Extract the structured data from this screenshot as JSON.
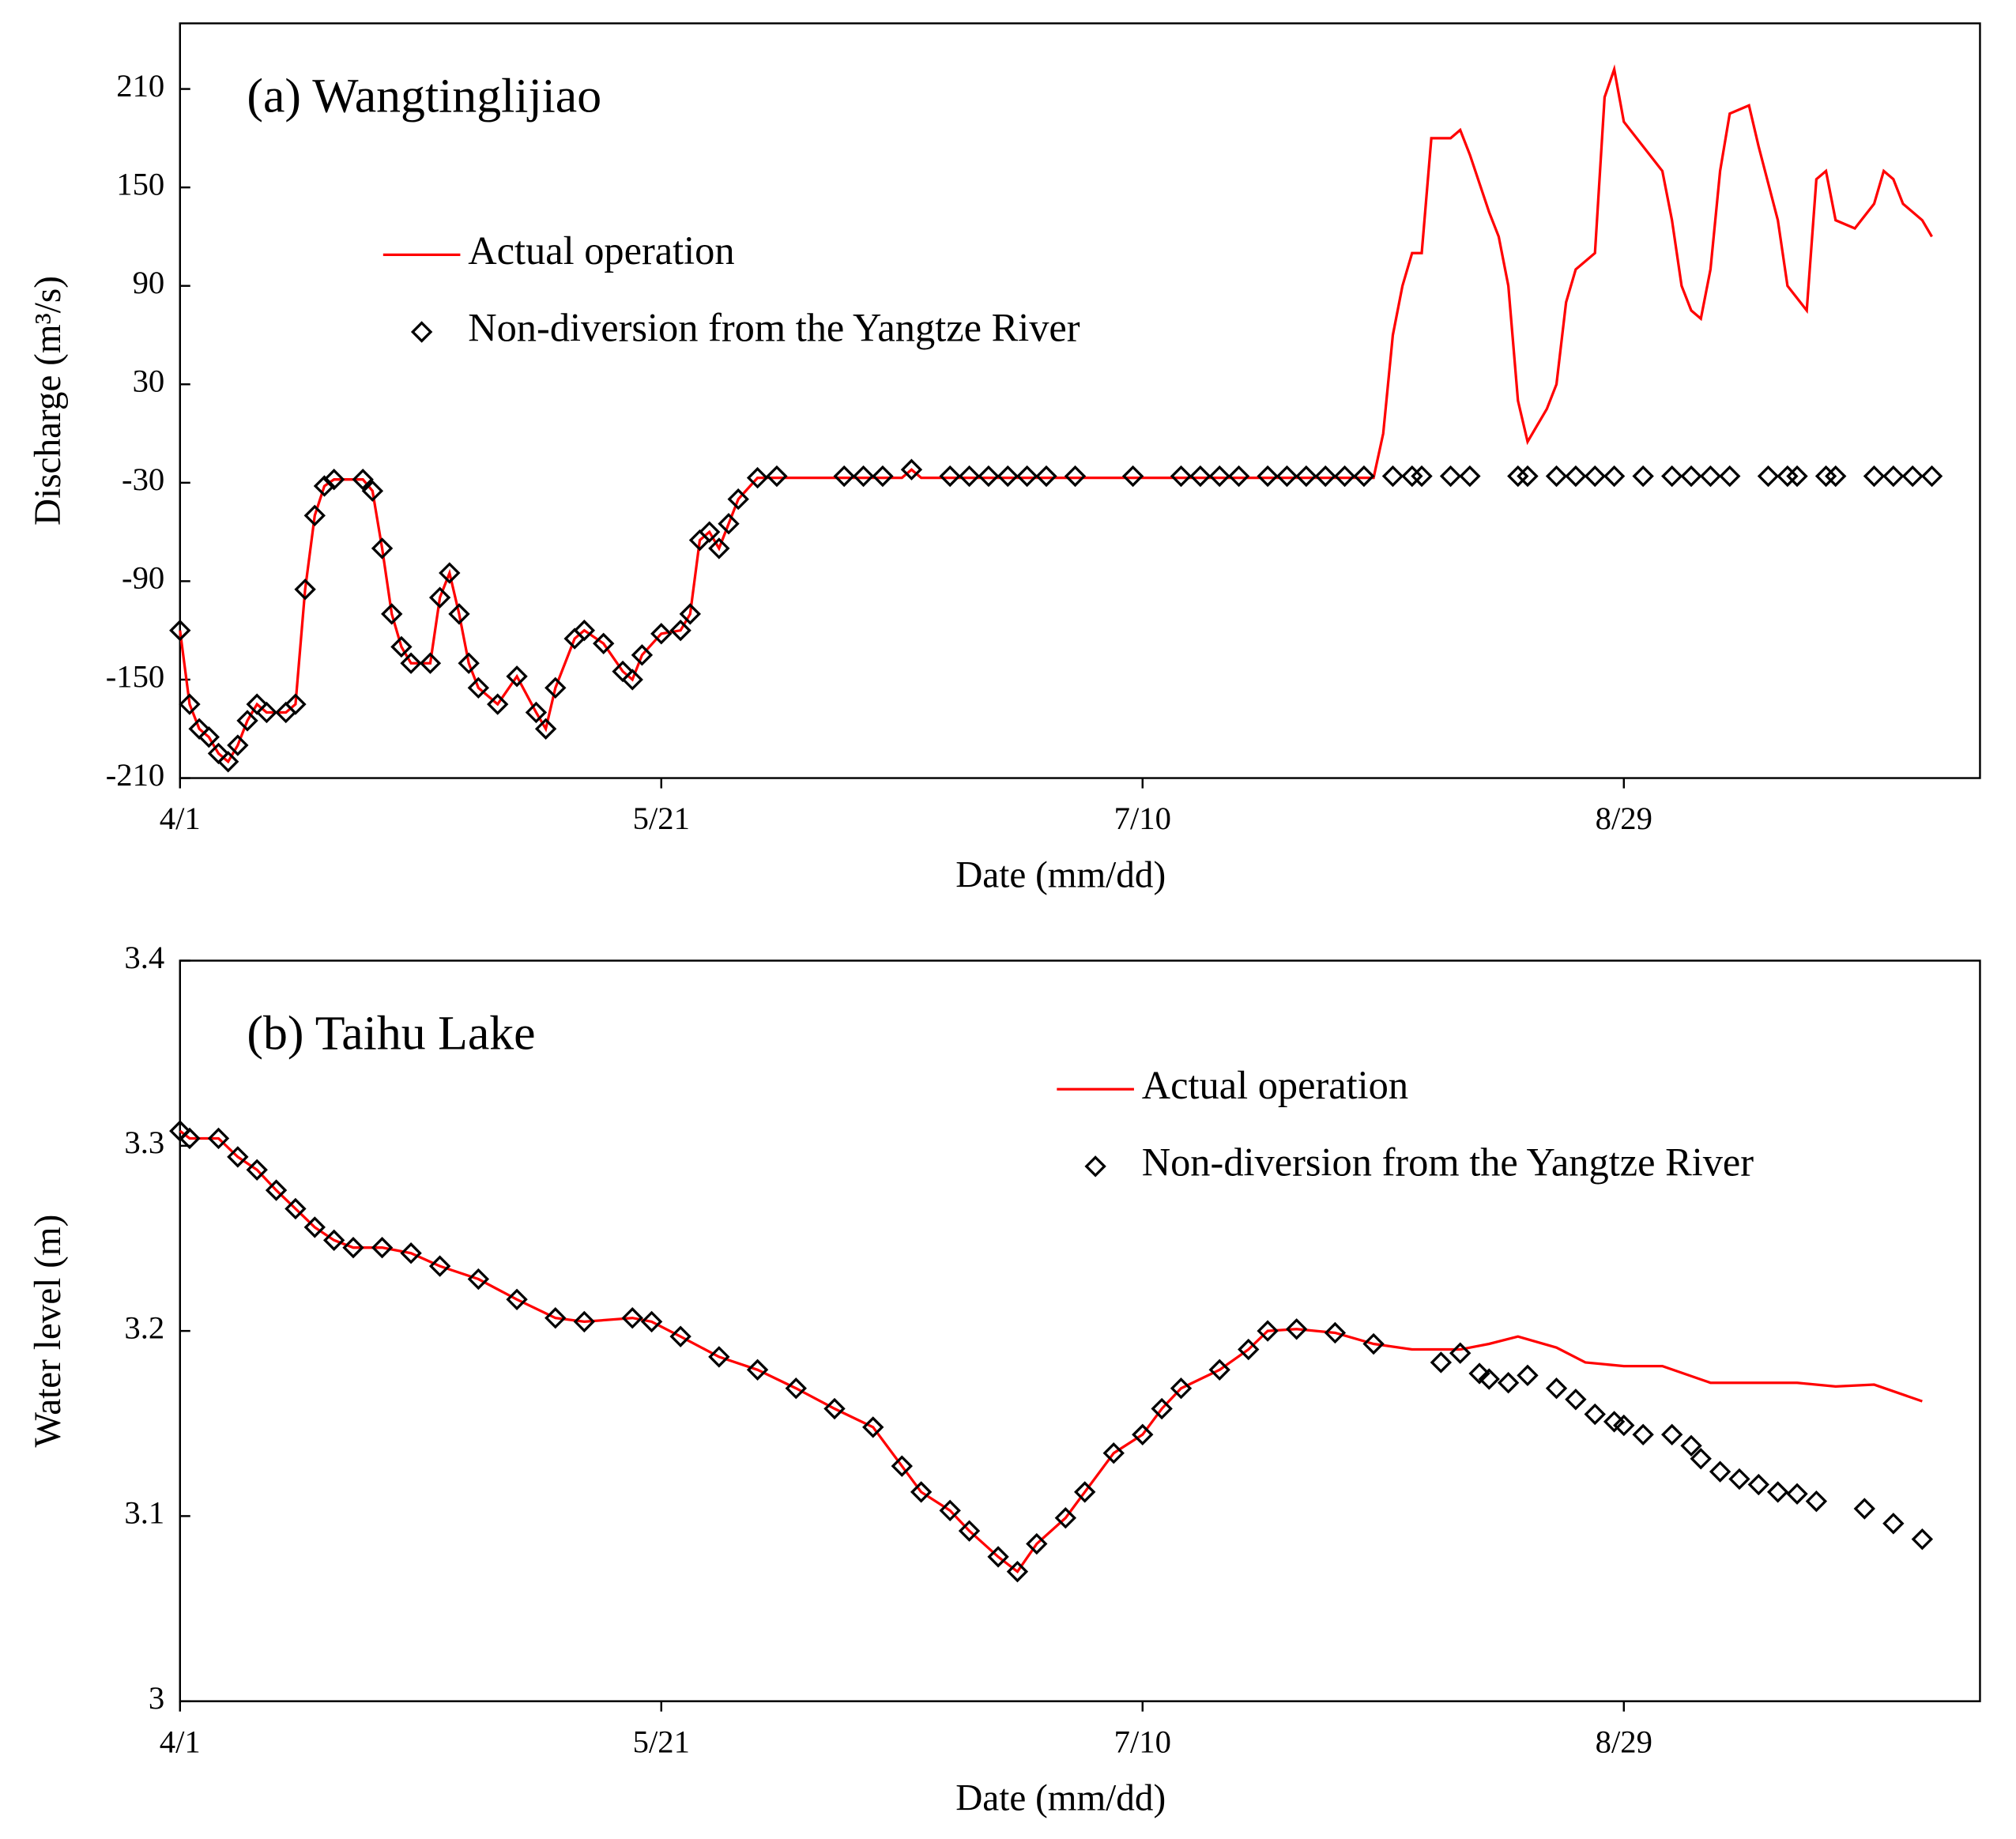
{
  "chart_data": [
    {
      "type": "line",
      "title": "(a) Wangtinglijiao",
      "xlabel": "Date (mm/dd)",
      "ylabel": "Discharge (m³/s)",
      "xlim": [
        "4/1",
        "10/5"
      ],
      "xticks": [
        "4/1",
        "5/21",
        "7/10",
        "8/29"
      ],
      "ylim": [
        -210,
        250
      ],
      "yticks": [
        -210,
        -150,
        -90,
        -30,
        30,
        90,
        150,
        210
      ],
      "legend": "upper left",
      "series": [
        {
          "name": "Actual operation",
          "color": "#ff0000",
          "style": "line",
          "x": [
            "4/1",
            "4/2",
            "4/3",
            "4/4",
            "4/5",
            "4/6",
            "4/7",
            "4/8",
            "4/9",
            "4/10",
            "4/12",
            "4/13",
            "4/14",
            "4/15",
            "4/16",
            "4/17",
            "4/20",
            "4/21",
            "4/22",
            "4/23",
            "4/24",
            "4/25",
            "4/27",
            "4/28",
            "4/29",
            "4/30",
            "5/1",
            "5/2",
            "5/4",
            "5/6",
            "5/8",
            "5/9",
            "5/10",
            "5/12",
            "5/13",
            "5/15",
            "5/17",
            "5/18",
            "5/19",
            "5/21",
            "5/23",
            "5/24",
            "5/25",
            "5/26",
            "5/27",
            "5/28",
            "5/29",
            "5/31",
            "6/15",
            "6/16",
            "6/17",
            "8/3",
            "8/4",
            "8/5",
            "8/6",
            "8/7",
            "8/8",
            "8/9",
            "8/11",
            "8/12",
            "8/13",
            "8/15",
            "8/16",
            "8/17",
            "8/18",
            "8/19",
            "8/20",
            "8/21",
            "8/22",
            "8/23",
            "8/24",
            "8/26",
            "8/27",
            "8/28",
            "8/29",
            "8/31",
            "9/2",
            "9/3",
            "9/4",
            "9/5",
            "9/6",
            "9/7",
            "9/8",
            "9/9",
            "9/11",
            "9/12",
            "9/14",
            "9/15",
            "9/17",
            "9/18",
            "9/19",
            "9/20",
            "9/22",
            "9/24",
            "9/25",
            "9/26",
            "9/27",
            "9/29",
            "9/30"
          ],
          "values": [
            -120,
            -165,
            -180,
            -185,
            -195,
            -200,
            -190,
            -175,
            -165,
            -170,
            -170,
            -165,
            -95,
            -50,
            -32,
            -28,
            -28,
            -35,
            -70,
            -110,
            -130,
            -140,
            -140,
            -100,
            -85,
            -110,
            -140,
            -155,
            -165,
            -148,
            -170,
            -180,
            -155,
            -125,
            -120,
            -128,
            -145,
            -150,
            -135,
            -122,
            -120,
            -110,
            -65,
            -60,
            -70,
            -55,
            -40,
            -27,
            -27,
            -22,
            -27,
            -27,
            0,
            60,
            90,
            110,
            110,
            180,
            180,
            185,
            170,
            135,
            120,
            90,
            20,
            -5,
            5,
            15,
            30,
            80,
            100,
            110,
            205,
            222,
            190,
            175,
            160,
            130,
            90,
            75,
            70,
            100,
            160,
            195,
            200,
            175,
            130,
            90,
            75,
            155,
            160,
            130,
            125,
            140,
            160,
            155,
            140,
            130,
            120
          ]
        },
        {
          "name": "Non-diversion from the Yangtze River",
          "color": "#000000",
          "style": "diamond",
          "x": [
            "4/1",
            "4/2",
            "4/3",
            "4/4",
            "4/5",
            "4/6",
            "4/7",
            "4/8",
            "4/9",
            "4/10",
            "4/12",
            "4/13",
            "4/14",
            "4/15",
            "4/16",
            "4/17",
            "4/20",
            "4/21",
            "4/22",
            "4/23",
            "4/24",
            "4/25",
            "4/27",
            "4/28",
            "4/29",
            "4/30",
            "5/1",
            "5/2",
            "5/4",
            "5/6",
            "5/8",
            "5/9",
            "5/10",
            "5/12",
            "5/13",
            "5/15",
            "5/17",
            "5/18",
            "5/19",
            "5/21",
            "5/23",
            "5/24",
            "5/25",
            "5/26",
            "5/27",
            "5/28",
            "5/29",
            "5/31",
            "6/2",
            "6/9",
            "6/11",
            "6/13",
            "6/16",
            "6/20",
            "6/22",
            "6/24",
            "6/26",
            "6/28",
            "6/30",
            "7/3",
            "7/9",
            "7/14",
            "7/16",
            "7/18",
            "7/20",
            "7/23",
            "7/25",
            "7/27",
            "7/29",
            "7/31",
            "8/2",
            "8/5",
            "8/7",
            "8/8",
            "8/11",
            "8/13",
            "8/18",
            "8/19",
            "8/22",
            "8/24",
            "8/26",
            "8/28",
            "8/31",
            "9/3",
            "9/5",
            "9/7",
            "9/9",
            "9/13",
            "9/15",
            "9/16",
            "9/19",
            "9/20",
            "9/24",
            "9/26",
            "9/28",
            "9/30"
          ],
          "values": [
            -120,
            -165,
            -180,
            -185,
            -195,
            -200,
            -190,
            -175,
            -165,
            -170,
            -170,
            -165,
            -95,
            -50,
            -32,
            -28,
            -28,
            -35,
            -70,
            -110,
            -130,
            -140,
            -140,
            -100,
            -85,
            -110,
            -140,
            -155,
            -165,
            -148,
            -170,
            -180,
            -155,
            -125,
            -120,
            -128,
            -145,
            -150,
            -135,
            -122,
            -120,
            -110,
            -65,
            -60,
            -70,
            -55,
            -40,
            -27,
            -26,
            -26,
            -26,
            -26,
            -22,
            -26,
            -26,
            -26,
            -26,
            -26,
            -26,
            -26,
            -26,
            -26,
            -26,
            -26,
            -26,
            -26,
            -26,
            -26,
            -26,
            -26,
            -26,
            -26,
            -26,
            -26,
            -26,
            -26,
            -26,
            -26,
            -26,
            -26,
            -26,
            -26,
            -26,
            -26,
            -26,
            -26,
            -26,
            -26,
            -26,
            -26,
            -26,
            -26,
            -26,
            -26,
            -26,
            -26
          ]
        }
      ]
    },
    {
      "type": "line",
      "title": "(b) Taihu Lake",
      "xlabel": "Date (mm/dd)",
      "ylabel": "Water level (m)",
      "xlim": [
        "4/1",
        "10/5"
      ],
      "xticks": [
        "4/1",
        "5/21",
        "7/10",
        "8/29"
      ],
      "ylim": [
        3,
        3.4
      ],
      "yticks": [
        3,
        3.1,
        3.2,
        3.3,
        3.4
      ],
      "legend": "upper right",
      "series": [
        {
          "name": "Actual operation",
          "color": "#ff0000",
          "style": "line",
          "x": [
            "4/1",
            "4/2",
            "4/5",
            "4/7",
            "4/9",
            "4/11",
            "4/13",
            "4/15",
            "4/17",
            "4/19",
            "4/22",
            "4/25",
            "4/28",
            "5/2",
            "5/6",
            "5/10",
            "5/13",
            "5/18",
            "5/20",
            "5/23",
            "5/27",
            "5/31",
            "6/4",
            "6/8",
            "6/12",
            "6/15",
            "6/17",
            "6/20",
            "6/22",
            "6/25",
            "6/27",
            "6/29",
            "7/2",
            "7/4",
            "7/7",
            "7/10",
            "7/12",
            "7/14",
            "7/18",
            "7/21",
            "7/23",
            "7/26",
            "7/30",
            "8/3",
            "8/7",
            "8/12",
            "8/15",
            "8/18",
            "8/22",
            "8/25",
            "8/29",
            "9/2",
            "9/7",
            "9/16",
            "9/20",
            "9/24",
            "9/29"
          ],
          "values": [
            3.308,
            3.304,
            3.304,
            3.294,
            3.287,
            3.276,
            3.266,
            3.256,
            3.249,
            3.245,
            3.245,
            3.242,
            3.235,
            3.228,
            3.217,
            3.207,
            3.205,
            3.207,
            3.205,
            3.197,
            3.186,
            3.179,
            3.169,
            3.158,
            3.148,
            3.127,
            3.113,
            3.103,
            3.092,
            3.078,
            3.07,
            3.085,
            3.099,
            3.113,
            3.134,
            3.144,
            3.158,
            3.169,
            3.179,
            3.19,
            3.2,
            3.201,
            3.199,
            3.193,
            3.19,
            3.19,
            3.193,
            3.197,
            3.191,
            3.183,
            3.181,
            3.181,
            3.172,
            3.172,
            3.17,
            3.171,
            3.162
          ]
        },
        {
          "name": "Non-diversion from the Yangtze River",
          "color": "#000000",
          "style": "diamond",
          "x": [
            "4/1",
            "4/2",
            "4/5",
            "4/7",
            "4/9",
            "4/11",
            "4/13",
            "4/15",
            "4/17",
            "4/19",
            "4/22",
            "4/25",
            "4/28",
            "5/2",
            "5/6",
            "5/10",
            "5/13",
            "5/18",
            "5/20",
            "5/23",
            "5/27",
            "5/31",
            "6/4",
            "6/8",
            "6/12",
            "6/15",
            "6/17",
            "6/20",
            "6/22",
            "6/25",
            "6/27",
            "6/29",
            "7/2",
            "7/4",
            "7/7",
            "7/10",
            "7/12",
            "7/14",
            "7/18",
            "7/21",
            "7/23",
            "7/26",
            "7/30",
            "8/3",
            "8/10",
            "8/12",
            "8/14",
            "8/15",
            "8/17",
            "8/19",
            "8/22",
            "8/24",
            "8/26",
            "8/28",
            "8/29",
            "8/31",
            "9/3",
            "9/5",
            "9/6",
            "9/8",
            "9/10",
            "9/12",
            "9/14",
            "9/16",
            "9/18",
            "9/23",
            "9/26",
            "9/29"
          ],
          "values": [
            3.308,
            3.304,
            3.304,
            3.294,
            3.287,
            3.276,
            3.266,
            3.256,
            3.249,
            3.245,
            3.245,
            3.242,
            3.235,
            3.228,
            3.217,
            3.207,
            3.205,
            3.207,
            3.205,
            3.197,
            3.186,
            3.179,
            3.169,
            3.158,
            3.148,
            3.127,
            3.113,
            3.103,
            3.092,
            3.078,
            3.07,
            3.085,
            3.099,
            3.113,
            3.134,
            3.144,
            3.158,
            3.169,
            3.179,
            3.19,
            3.2,
            3.201,
            3.199,
            3.193,
            3.183,
            3.188,
            3.177,
            3.174,
            3.172,
            3.176,
            3.169,
            3.163,
            3.155,
            3.151,
            3.149,
            3.144,
            3.144,
            3.138,
            3.131,
            3.124,
            3.12,
            3.117,
            3.113,
            3.112,
            3.108,
            3.104,
            3.096,
            3.0875
          ]
        }
      ]
    }
  ]
}
